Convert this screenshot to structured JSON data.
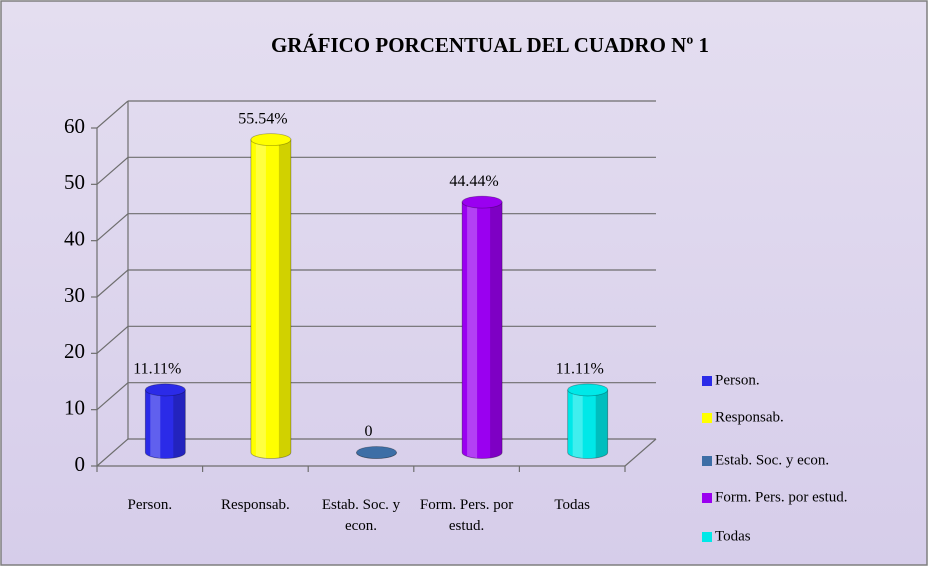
{
  "chart_data": {
    "type": "bar3d",
    "title": "GRÁFICO PORCENTUAL DEL CUADRO Nº 1",
    "categories": [
      "Person.",
      "Responsab.",
      "Estab. Soc. y econ.",
      "Form. Pers. por estud.",
      "Todas"
    ],
    "values": [
      11.11,
      55.54,
      0,
      44.44,
      11.11
    ],
    "value_labels": [
      "11.11%",
      "55.54%",
      "0",
      "44.44%",
      "11.11%"
    ],
    "colors": [
      "#2b2be8",
      "#ffff00",
      "#3d6ea6",
      "#9a00f0",
      "#00e8e8"
    ],
    "ylim": [
      0,
      60
    ],
    "yticks": [
      0,
      10,
      20,
      30,
      40,
      50,
      60
    ],
    "grid": true,
    "legend": "right"
  }
}
